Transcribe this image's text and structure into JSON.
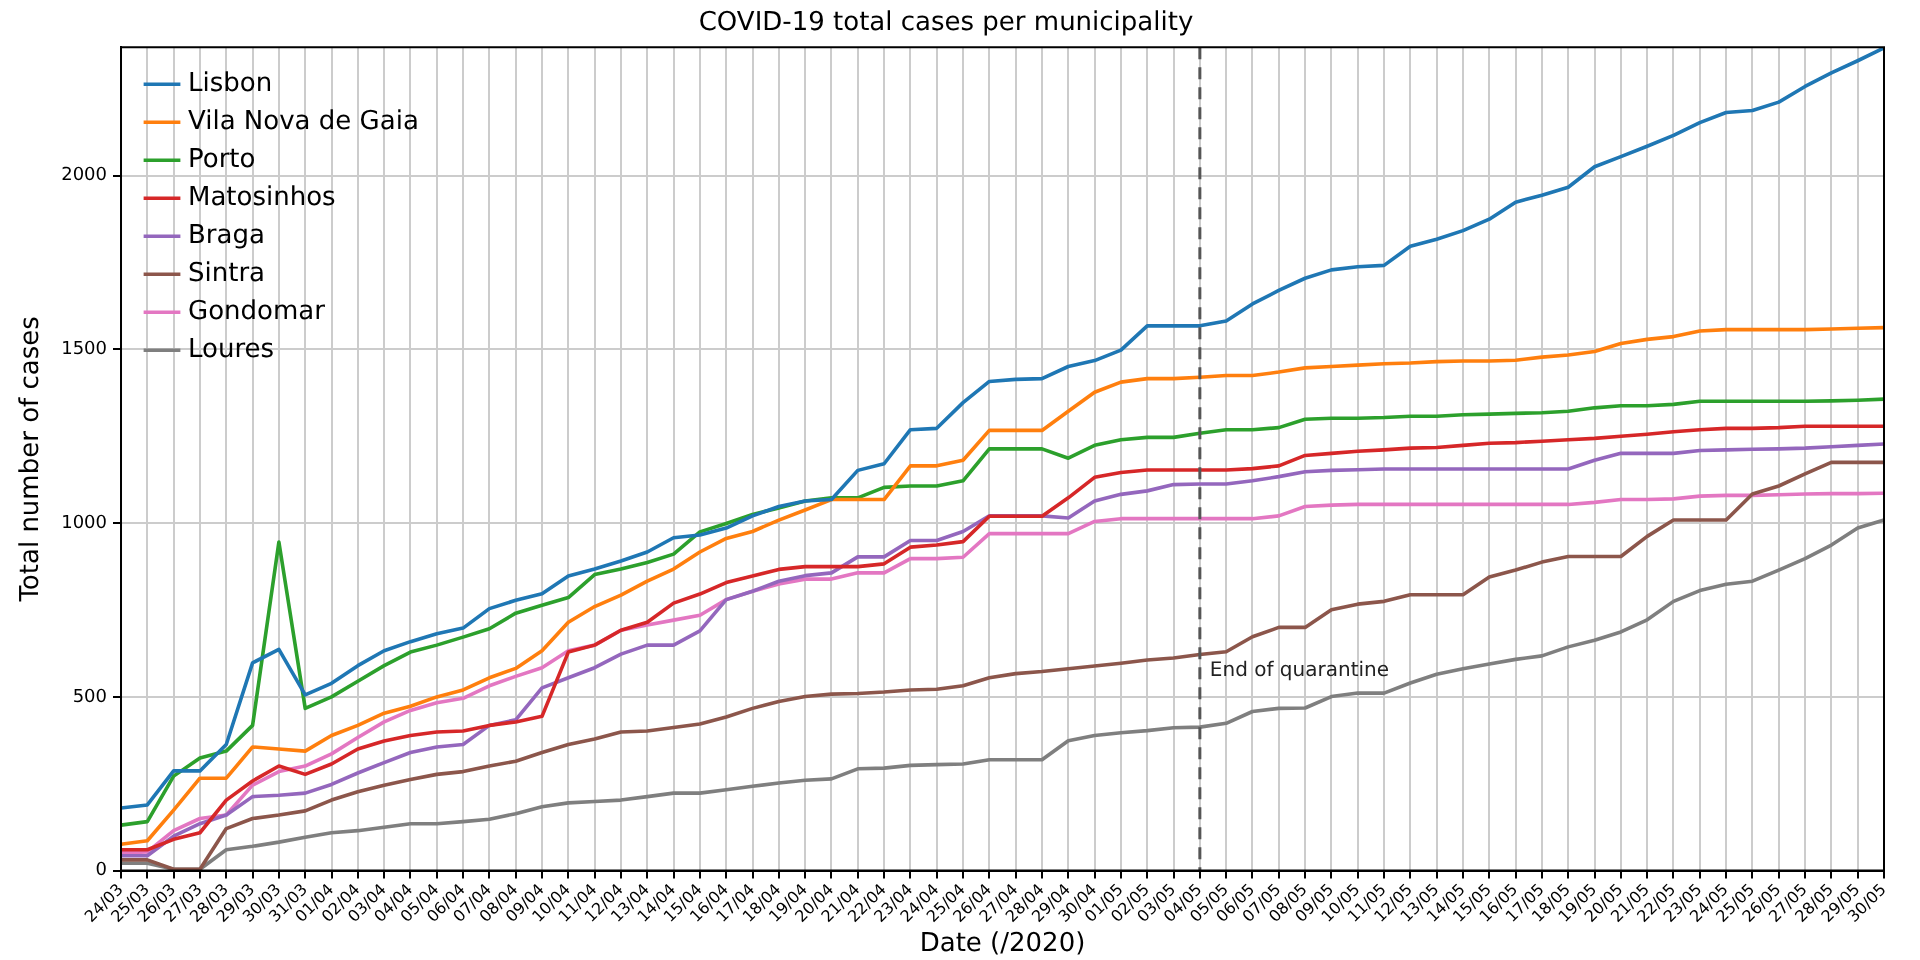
{
  "chart_data": {
    "type": "line",
    "title": "COVID-19 total cases per municipality",
    "xlabel": "Date (/2020)",
    "ylabel": "Total number of cases",
    "categories": [
      "24/03",
      "25/03",
      "26/03",
      "27/03",
      "28/03",
      "29/03",
      "30/03",
      "31/03",
      "01/04",
      "02/04",
      "03/04",
      "04/04",
      "05/04",
      "06/04",
      "07/04",
      "08/04",
      "09/04",
      "10/04",
      "11/04",
      "12/04",
      "13/04",
      "14/04",
      "15/04",
      "16/04",
      "17/04",
      "18/04",
      "19/04",
      "20/04",
      "21/04",
      "22/04",
      "23/04",
      "24/04",
      "25/04",
      "26/04",
      "27/04",
      "28/04",
      "29/04",
      "30/04",
      "01/05",
      "02/05",
      "03/05",
      "04/05",
      "05/05",
      "06/05",
      "07/05",
      "08/05",
      "09/05",
      "10/05",
      "11/05",
      "12/05",
      "13/05",
      "14/05",
      "15/05",
      "16/05",
      "17/05",
      "18/05",
      "19/05",
      "20/05",
      "21/05",
      "22/05",
      "23/05",
      "24/05",
      "25/05",
      "26/05",
      "27/05",
      "28/05",
      "29/05",
      "30/05"
    ],
    "series": [
      {
        "name": "Lisbon",
        "color": "#1f77b4",
        "values": [
          180,
          189,
          287,
          287,
          363,
          598,
          637,
          506,
          539,
          590,
          633,
          659,
          682,
          698,
          754,
          778,
          797,
          848,
          868,
          891,
          917,
          958,
          966,
          986,
          1021,
          1048,
          1064,
          1068,
          1152,
          1171,
          1269,
          1273,
          1347,
          1408,
          1414,
          1416,
          1451,
          1468,
          1498,
          1568,
          1568,
          1568,
          1582,
          1631,
          1670,
          1705,
          1729,
          1738,
          1742,
          1797,
          1817,
          1842,
          1875,
          1924,
          1944,
          1967,
          2026,
          2055,
          2085,
          2116,
          2153,
          2182,
          2188,
          2212,
          2257,
          2296,
          2331,
          2368
        ]
      },
      {
        "name": "Vila Nova de Gaia",
        "color": "#ff7f0e",
        "values": [
          76,
          86,
          174,
          266,
          266,
          356,
          350,
          344,
          389,
          418,
          453,
          473,
          500,
          520,
          555,
          582,
          633,
          715,
          760,
          793,
          833,
          868,
          917,
          956,
          976,
          1009,
          1038,
          1068,
          1068,
          1068,
          1165,
          1165,
          1181,
          1267,
          1267,
          1267,
          1322,
          1377,
          1406,
          1416,
          1416,
          1420,
          1425,
          1425,
          1435,
          1447,
          1451,
          1455,
          1459,
          1461,
          1465,
          1467,
          1467,
          1469,
          1478,
          1484,
          1494,
          1517,
          1529,
          1537,
          1553,
          1557,
          1557,
          1557,
          1557,
          1559,
          1561,
          1563
        ]
      },
      {
        "name": "Porto",
        "color": "#2ca02c",
        "values": [
          131,
          141,
          272,
          324,
          344,
          418,
          946,
          467,
          500,
          545,
          590,
          629,
          649,
          672,
          696,
          741,
          764,
          786,
          852,
          868,
          887,
          911,
          975,
          999,
          1025,
          1044,
          1064,
          1073,
          1073,
          1103,
          1107,
          1107,
          1122,
          1214,
          1214,
          1214,
          1187,
          1224,
          1240,
          1247,
          1247,
          1259,
          1269,
          1269,
          1275,
          1299,
          1302,
          1302,
          1304,
          1308,
          1308,
          1312,
          1314,
          1316,
          1318,
          1322,
          1332,
          1338,
          1338,
          1342,
          1351,
          1351,
          1351,
          1351,
          1351,
          1352,
          1354,
          1357
        ]
      },
      {
        "name": "Matosinhos",
        "color": "#d62728",
        "values": [
          60,
          60,
          90,
          109,
          203,
          258,
          301,
          277,
          307,
          350,
          373,
          389,
          399,
          402,
          418,
          428,
          444,
          629,
          649,
          692,
          715,
          770,
          796,
          829,
          848,
          867,
          875,
          875,
          875,
          883,
          931,
          937,
          947,
          1020,
          1020,
          1020,
          1073,
          1132,
          1146,
          1153,
          1153,
          1153,
          1153,
          1157,
          1165,
          1195,
          1201,
          1207,
          1211,
          1216,
          1218,
          1224,
          1230,
          1232,
          1236,
          1240,
          1244,
          1250,
          1256,
          1263,
          1269,
          1273,
          1273,
          1275,
          1279,
          1279,
          1279,
          1279
        ]
      },
      {
        "name": "Braga",
        "color": "#9467bd",
        "values": [
          43,
          43,
          99,
          135,
          160,
          213,
          217,
          223,
          248,
          281,
          311,
          340,
          356,
          363,
          418,
          434,
          526,
          555,
          584,
          623,
          649,
          649,
          690,
          780,
          804,
          833,
          849,
          857,
          903,
          903,
          950,
          950,
          976,
          1021,
          1021,
          1021,
          1015,
          1064,
          1083,
          1093,
          1111,
          1113,
          1113,
          1122,
          1134,
          1148,
          1152,
          1154,
          1156,
          1156,
          1156,
          1156,
          1156,
          1156,
          1156,
          1156,
          1181,
          1201,
          1201,
          1201,
          1209,
          1211,
          1213,
          1214,
          1216,
          1220,
          1224,
          1228
        ]
      },
      {
        "name": "Sintra",
        "color": "#8c564b",
        "values": [
          31,
          31,
          4,
          4,
          121,
          150,
          160,
          172,
          203,
          227,
          246,
          262,
          277,
          285,
          301,
          315,
          340,
          363,
          379,
          399,
          402,
          412,
          422,
          442,
          467,
          487,
          501,
          508,
          510,
          514,
          520,
          522,
          532,
          555,
          567,
          573,
          581,
          589,
          597,
          606,
          612,
          622,
          630,
          673,
          700,
          700,
          751,
          767,
          775,
          794,
          794,
          794,
          845,
          865,
          888,
          904,
          904,
          904,
          962,
          1009,
          1009,
          1009,
          1084,
          1107,
          1142,
          1175,
          1175,
          1175
        ]
      },
      {
        "name": "Gondomar",
        "color": "#e377c2",
        "values": [
          51,
          54,
          115,
          150,
          160,
          246,
          285,
          301,
          336,
          383,
          428,
          461,
          483,
          496,
          532,
          559,
          584,
          633,
          649,
          692,
          707,
          721,
          735,
          780,
          804,
          825,
          839,
          839,
          857,
          857,
          898,
          898,
          902,
          970,
          970,
          970,
          970,
          1005,
          1013,
          1013,
          1013,
          1013,
          1013,
          1013,
          1021,
          1048,
          1052,
          1054,
          1054,
          1054,
          1054,
          1054,
          1054,
          1054,
          1054,
          1054,
          1060,
          1068,
          1068,
          1070,
          1078,
          1080,
          1080,
          1082,
          1084,
          1085,
          1085,
          1086
        ]
      },
      {
        "name": "Loures",
        "color": "#7f7f7f",
        "values": [
          21,
          21,
          4,
          4,
          60,
          70,
          82,
          96,
          109,
          115,
          125,
          135,
          135,
          141,
          148,
          164,
          184,
          195,
          199,
          203,
          213,
          223,
          223,
          233,
          243,
          252,
          260,
          264,
          293,
          295,
          303,
          305,
          307,
          319,
          319,
          319,
          374,
          389,
          397,
          403,
          411,
          413,
          424,
          458,
          467,
          468,
          501,
          511,
          511,
          540,
          565,
          581,
          595,
          608,
          618,
          644,
          663,
          687,
          722,
          775,
          806,
          824,
          833,
          865,
          898,
          937,
          986,
          1009
        ]
      }
    ],
    "ylim": [
      0,
      2370
    ],
    "yticks": [
      0,
      500,
      1000,
      1500,
      2000
    ],
    "grid": true,
    "legend": "top left",
    "marker": "none",
    "line_style": "solid",
    "ref_lines": [
      {
        "axis": "x",
        "value": "04/05",
        "label": "End of quarantine",
        "color": "#555555",
        "line_style": "dashed"
      }
    ]
  }
}
